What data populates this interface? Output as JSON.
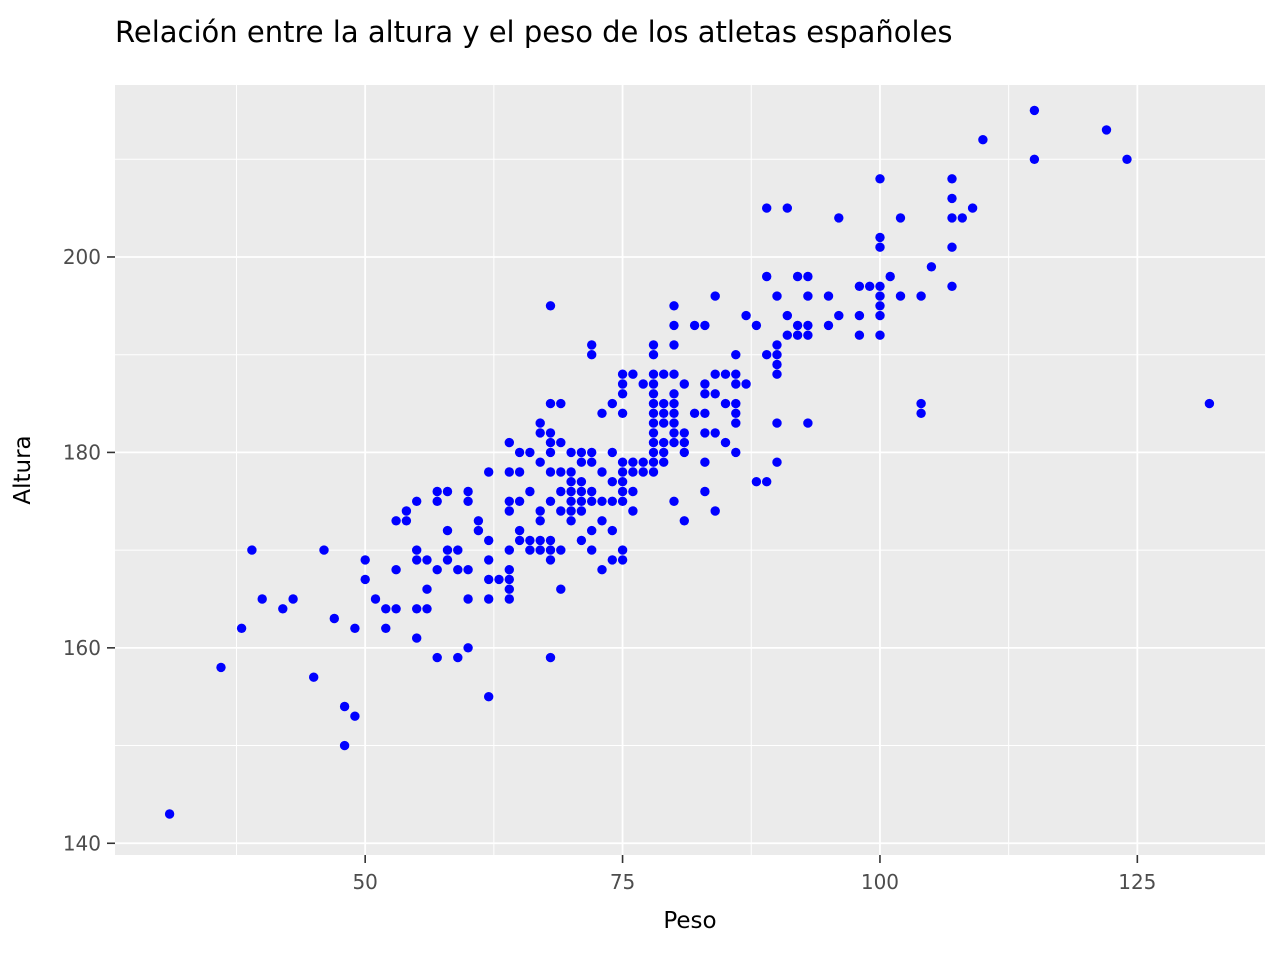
{
  "title": "Relación entre la altura y el peso de los atletas españoles",
  "axes": {
    "x_label": "Peso",
    "y_label": "Altura",
    "x_ticks": [
      50,
      75,
      100,
      125
    ],
    "y_ticks": [
      140,
      160,
      180,
      200
    ],
    "x_minor_ticks": [
      37.5,
      62.5,
      87.5,
      112.5
    ],
    "y_minor_ticks": [
      150,
      170,
      190,
      210
    ],
    "x_range": [
      25.7,
      137.4
    ],
    "y_range": [
      138.8,
      217.6
    ]
  },
  "style": {
    "panel_background": "#ebebeb",
    "grid_color": "#ffffff",
    "point_color": "#0000ff",
    "tick_label_color": "#4d4d4d",
    "text_color": "#000000",
    "tick_mark_color": "#333333"
  },
  "chart_data": {
    "type": "scatter",
    "title": "Relación entre la altura y el peso de los atletas españoles",
    "xlabel": "Peso",
    "ylabel": "Altura",
    "xlim": [
      25.7,
      137.4
    ],
    "ylim": [
      138.8,
      217.6
    ],
    "x_major_ticks": [
      50,
      75,
      100,
      125
    ],
    "y_major_ticks": [
      140,
      160,
      180,
      200
    ],
    "grid": "major-minor-white-on-gray",
    "legend": "none",
    "points": [
      [
        31,
        143
      ],
      [
        36,
        158
      ],
      [
        38,
        162
      ],
      [
        39,
        170
      ],
      [
        40,
        165
      ],
      [
        42,
        164
      ],
      [
        43,
        165
      ],
      [
        45,
        157
      ],
      [
        46,
        170
      ],
      [
        47,
        163
      ],
      [
        48,
        150
      ],
      [
        48,
        154
      ],
      [
        49,
        153
      ],
      [
        49,
        162
      ],
      [
        50,
        167
      ],
      [
        50,
        169
      ],
      [
        51,
        165
      ],
      [
        52,
        162
      ],
      [
        52,
        164
      ],
      [
        53,
        164
      ],
      [
        53,
        168
      ],
      [
        53,
        173
      ],
      [
        54,
        173
      ],
      [
        54,
        174
      ],
      [
        55,
        161
      ],
      [
        55,
        164
      ],
      [
        55,
        169
      ],
      [
        55,
        170
      ],
      [
        55,
        175
      ],
      [
        56,
        164
      ],
      [
        56,
        166
      ],
      [
        56,
        169
      ],
      [
        57,
        159
      ],
      [
        57,
        168
      ],
      [
        57,
        175
      ],
      [
        57,
        176
      ],
      [
        58,
        169
      ],
      [
        58,
        170
      ],
      [
        58,
        172
      ],
      [
        58,
        176
      ],
      [
        59,
        159
      ],
      [
        59,
        168
      ],
      [
        59,
        170
      ],
      [
        60,
        160
      ],
      [
        60,
        165
      ],
      [
        60,
        168
      ],
      [
        60,
        175
      ],
      [
        60,
        176
      ],
      [
        61,
        172
      ],
      [
        61,
        173
      ],
      [
        62,
        155
      ],
      [
        62,
        165
      ],
      [
        62,
        167
      ],
      [
        62,
        169
      ],
      [
        62,
        171
      ],
      [
        62,
        178
      ],
      [
        63,
        167
      ],
      [
        64,
        165
      ],
      [
        64,
        166
      ],
      [
        64,
        167
      ],
      [
        64,
        168
      ],
      [
        64,
        170
      ],
      [
        64,
        174
      ],
      [
        64,
        175
      ],
      [
        64,
        178
      ],
      [
        64,
        181
      ],
      [
        65,
        171
      ],
      [
        65,
        172
      ],
      [
        65,
        175
      ],
      [
        65,
        178
      ],
      [
        65,
        180
      ],
      [
        66,
        170
      ],
      [
        66,
        171
      ],
      [
        66,
        176
      ],
      [
        66,
        180
      ],
      [
        67,
        170
      ],
      [
        67,
        171
      ],
      [
        67,
        173
      ],
      [
        67,
        174
      ],
      [
        67,
        179
      ],
      [
        67,
        182
      ],
      [
        67,
        183
      ],
      [
        68,
        159
      ],
      [
        68,
        169
      ],
      [
        68,
        170
      ],
      [
        68,
        171
      ],
      [
        68,
        175
      ],
      [
        68,
        178
      ],
      [
        68,
        180
      ],
      [
        68,
        181
      ],
      [
        68,
        182
      ],
      [
        68,
        185
      ],
      [
        68,
        195
      ],
      [
        69,
        166
      ],
      [
        69,
        170
      ],
      [
        69,
        174
      ],
      [
        69,
        176
      ],
      [
        69,
        178
      ],
      [
        69,
        181
      ],
      [
        69,
        185
      ],
      [
        70,
        173
      ],
      [
        70,
        174
      ],
      [
        70,
        175
      ],
      [
        70,
        176
      ],
      [
        70,
        177
      ],
      [
        70,
        178
      ],
      [
        70,
        180
      ],
      [
        71,
        171
      ],
      [
        71,
        174
      ],
      [
        71,
        175
      ],
      [
        71,
        176
      ],
      [
        71,
        177
      ],
      [
        71,
        179
      ],
      [
        71,
        180
      ],
      [
        72,
        170
      ],
      [
        72,
        172
      ],
      [
        72,
        175
      ],
      [
        72,
        176
      ],
      [
        72,
        179
      ],
      [
        72,
        180
      ],
      [
        72,
        190
      ],
      [
        72,
        191
      ],
      [
        73,
        168
      ],
      [
        73,
        173
      ],
      [
        73,
        175
      ],
      [
        73,
        178
      ],
      [
        73,
        184
      ],
      [
        74,
        169
      ],
      [
        74,
        172
      ],
      [
        74,
        175
      ],
      [
        74,
        177
      ],
      [
        74,
        180
      ],
      [
        74,
        185
      ],
      [
        75,
        169
      ],
      [
        75,
        170
      ],
      [
        75,
        175
      ],
      [
        75,
        176
      ],
      [
        75,
        177
      ],
      [
        75,
        178
      ],
      [
        75,
        179
      ],
      [
        75,
        184
      ],
      [
        75,
        186
      ],
      [
        75,
        187
      ],
      [
        75,
        188
      ],
      [
        76,
        174
      ],
      [
        76,
        176
      ],
      [
        76,
        178
      ],
      [
        76,
        179
      ],
      [
        76,
        188
      ],
      [
        77,
        178
      ],
      [
        77,
        179
      ],
      [
        77,
        187
      ],
      [
        78,
        178
      ],
      [
        78,
        179
      ],
      [
        78,
        180
      ],
      [
        78,
        181
      ],
      [
        78,
        182
      ],
      [
        78,
        183
      ],
      [
        78,
        184
      ],
      [
        78,
        185
      ],
      [
        78,
        186
      ],
      [
        78,
        187
      ],
      [
        78,
        188
      ],
      [
        78,
        190
      ],
      [
        78,
        191
      ],
      [
        79,
        179
      ],
      [
        79,
        180
      ],
      [
        79,
        181
      ],
      [
        79,
        183
      ],
      [
        79,
        184
      ],
      [
        79,
        185
      ],
      [
        79,
        188
      ],
      [
        80,
        175
      ],
      [
        80,
        181
      ],
      [
        80,
        182
      ],
      [
        80,
        183
      ],
      [
        80,
        184
      ],
      [
        80,
        185
      ],
      [
        80,
        186
      ],
      [
        80,
        188
      ],
      [
        80,
        191
      ],
      [
        80,
        193
      ],
      [
        80,
        195
      ],
      [
        81,
        173
      ],
      [
        81,
        180
      ],
      [
        81,
        181
      ],
      [
        81,
        182
      ],
      [
        81,
        187
      ],
      [
        82,
        184
      ],
      [
        82,
        193
      ],
      [
        83,
        176
      ],
      [
        83,
        179
      ],
      [
        83,
        182
      ],
      [
        83,
        184
      ],
      [
        83,
        186
      ],
      [
        83,
        187
      ],
      [
        83,
        193
      ],
      [
        84,
        174
      ],
      [
        84,
        182
      ],
      [
        84,
        186
      ],
      [
        84,
        188
      ],
      [
        84,
        196
      ],
      [
        85,
        181
      ],
      [
        85,
        185
      ],
      [
        85,
        188
      ],
      [
        86,
        180
      ],
      [
        86,
        183
      ],
      [
        86,
        184
      ],
      [
        86,
        185
      ],
      [
        86,
        187
      ],
      [
        86,
        188
      ],
      [
        86,
        190
      ],
      [
        87,
        187
      ],
      [
        87,
        194
      ],
      [
        88,
        177
      ],
      [
        88,
        193
      ],
      [
        89,
        177
      ],
      [
        89,
        190
      ],
      [
        89,
        198
      ],
      [
        89,
        205
      ],
      [
        90,
        179
      ],
      [
        90,
        183
      ],
      [
        90,
        188
      ],
      [
        90,
        189
      ],
      [
        90,
        190
      ],
      [
        90,
        191
      ],
      [
        90,
        196
      ],
      [
        91,
        192
      ],
      [
        91,
        194
      ],
      [
        91,
        205
      ],
      [
        92,
        192
      ],
      [
        92,
        193
      ],
      [
        92,
        198
      ],
      [
        93,
        183
      ],
      [
        93,
        192
      ],
      [
        93,
        193
      ],
      [
        93,
        196
      ],
      [
        93,
        198
      ],
      [
        95,
        193
      ],
      [
        95,
        196
      ],
      [
        96,
        194
      ],
      [
        96,
        204
      ],
      [
        98,
        192
      ],
      [
        98,
        194
      ],
      [
        98,
        197
      ],
      [
        99,
        197
      ],
      [
        100,
        192
      ],
      [
        100,
        194
      ],
      [
        100,
        195
      ],
      [
        100,
        196
      ],
      [
        100,
        197
      ],
      [
        100,
        201
      ],
      [
        100,
        202
      ],
      [
        100,
        208
      ],
      [
        101,
        198
      ],
      [
        102,
        196
      ],
      [
        102,
        204
      ],
      [
        104,
        184
      ],
      [
        104,
        185
      ],
      [
        104,
        196
      ],
      [
        105,
        199
      ],
      [
        107,
        197
      ],
      [
        107,
        201
      ],
      [
        107,
        204
      ],
      [
        107,
        206
      ],
      [
        107,
        208
      ],
      [
        108,
        204
      ],
      [
        109,
        205
      ],
      [
        110,
        212
      ],
      [
        115,
        210
      ],
      [
        115,
        215
      ],
      [
        122,
        213
      ],
      [
        124,
        210
      ],
      [
        132,
        185
      ]
    ]
  }
}
